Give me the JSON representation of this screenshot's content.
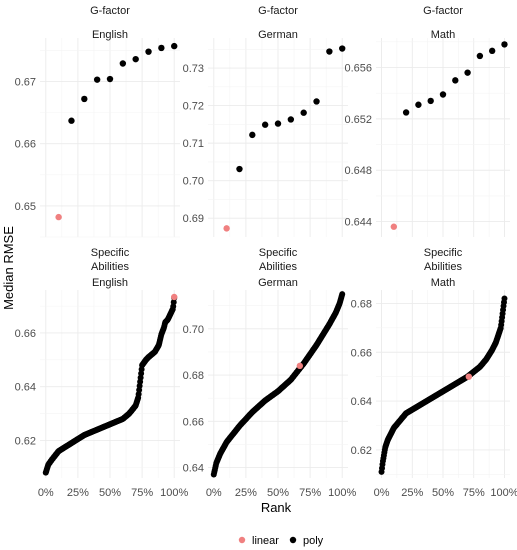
{
  "figure": {
    "y_title": "Median RMSE",
    "x_title": "Rank",
    "legend": [
      {
        "label": "linear",
        "color": "#f08080"
      },
      {
        "label": "poly",
        "color": "#000000"
      }
    ]
  },
  "chart_data": [
    {
      "type": "scatter",
      "row_label": "G-factor",
      "col_label": "English",
      "ylim": [
        0.645,
        0.677
      ],
      "yticks": [
        0.65,
        0.66,
        0.67
      ],
      "ytick_labels": [
        "0.65",
        "0.66",
        "0.67"
      ],
      "xlim": [
        0,
        100
      ],
      "series": [
        {
          "name": "linear",
          "x": [
            10
          ],
          "y": [
            0.6482
          ]
        },
        {
          "name": "poly",
          "x": [
            20,
            30,
            40,
            50,
            60,
            70,
            80,
            90,
            100
          ],
          "y": [
            0.6637,
            0.6672,
            0.6703,
            0.6704,
            0.6729,
            0.6736,
            0.6748,
            0.6754,
            0.6757
          ]
        }
      ]
    },
    {
      "type": "scatter",
      "row_label": "G-factor",
      "col_label": "German",
      "ylim": [
        0.685,
        0.738
      ],
      "yticks": [
        0.69,
        0.7,
        0.71,
        0.72,
        0.73
      ],
      "ytick_labels": [
        "0.69",
        "0.70",
        "0.71",
        "0.72",
        "0.73"
      ],
      "xlim": [
        0,
        100
      ],
      "series": [
        {
          "name": "linear",
          "x": [
            10
          ],
          "y": [
            0.6873
          ]
        },
        {
          "name": "poly",
          "x": [
            20,
            30,
            40,
            50,
            60,
            70,
            80,
            90,
            100
          ],
          "y": [
            0.7031,
            0.7122,
            0.7149,
            0.7152,
            0.7163,
            0.7181,
            0.7211,
            0.7344,
            0.7352
          ]
        }
      ]
    },
    {
      "type": "scatter",
      "row_label": "G-factor",
      "col_label": "Math",
      "ylim": [
        0.6428,
        0.6583
      ],
      "yticks": [
        0.644,
        0.648,
        0.652,
        0.656
      ],
      "ytick_labels": [
        "0.644",
        "0.648",
        "0.652",
        "0.656"
      ],
      "xlim": [
        0,
        100
      ],
      "series": [
        {
          "name": "linear",
          "x": [
            10
          ],
          "y": [
            0.6436
          ]
        },
        {
          "name": "poly",
          "x": [
            20,
            30,
            40,
            50,
            60,
            70,
            80,
            90,
            100
          ],
          "y": [
            0.6525,
            0.6531,
            0.6534,
            0.6539,
            0.655,
            0.6556,
            0.6569,
            0.6573,
            0.6578
          ]
        }
      ]
    },
    {
      "type": "scatter",
      "row_label": "Specific Abilities",
      "col_label": "English",
      "ylim": [
        0.606,
        0.676
      ],
      "yticks": [
        0.62,
        0.64,
        0.66
      ],
      "ytick_labels": [
        "0.62",
        "0.64",
        "0.66"
      ],
      "xlim": [
        0,
        100
      ],
      "xticks": [
        0,
        25,
        50,
        75,
        100
      ],
      "xtick_labels": [
        "0%",
        "25%",
        "50%",
        "75%",
        "100%"
      ],
      "curve": {
        "x": [
          0,
          2,
          5,
          10,
          20,
          30,
          40,
          50,
          60,
          65,
          70,
          72,
          73,
          75,
          78,
          80,
          85,
          88,
          90,
          92,
          93,
          95,
          97,
          99,
          100
        ],
        "y": [
          0.608,
          0.611,
          0.613,
          0.616,
          0.619,
          0.622,
          0.624,
          0.626,
          0.628,
          0.63,
          0.633,
          0.636,
          0.64,
          0.648,
          0.65,
          0.651,
          0.653,
          0.6555,
          0.6595,
          0.662,
          0.664,
          0.665,
          0.667,
          0.669,
          0.673
        ]
      },
      "series": [
        {
          "name": "linear",
          "x": [
            100
          ],
          "y": [
            0.6734
          ]
        }
      ]
    },
    {
      "type": "scatter",
      "row_label": "Specific Abilities",
      "col_label": "German",
      "ylim": [
        0.6355,
        0.7168
      ],
      "yticks": [
        0.64,
        0.66,
        0.68,
        0.7
      ],
      "ytick_labels": [
        "0.64",
        "0.66",
        "0.68",
        "0.70"
      ],
      "xlim": [
        0,
        100
      ],
      "xticks": [
        0,
        25,
        50,
        75,
        100
      ],
      "xtick_labels": [
        "0%",
        "25%",
        "50%",
        "75%",
        "100%"
      ],
      "curve": {
        "x": [
          0,
          2,
          5,
          10,
          20,
          30,
          40,
          50,
          60,
          70,
          80,
          90,
          95,
          98,
          100
        ],
        "y": [
          0.637,
          0.642,
          0.646,
          0.651,
          0.658,
          0.664,
          0.669,
          0.673,
          0.678,
          0.685,
          0.693,
          0.702,
          0.707,
          0.711,
          0.715
        ]
      },
      "series": [
        {
          "name": "linear",
          "x": [
            67
          ],
          "y": [
            0.684
          ]
        }
      ]
    },
    {
      "type": "scatter",
      "row_label": "Specific Abilities",
      "col_label": "Math",
      "ylim": [
        0.6085,
        0.6855
      ],
      "yticks": [
        0.62,
        0.64,
        0.66,
        0.68
      ],
      "ytick_labels": [
        "0.62",
        "0.64",
        "0.66",
        "0.68"
      ],
      "xlim": [
        0,
        100
      ],
      "xticks": [
        0,
        25,
        50,
        75,
        100
      ],
      "xtick_labels": [
        "0%",
        "25%",
        "50%",
        "75%",
        "100%"
      ],
      "curve": {
        "x": [
          0,
          1,
          2,
          3,
          5,
          8,
          10,
          15,
          20,
          30,
          40,
          50,
          60,
          70,
          75,
          80,
          85,
          90,
          93,
          95,
          97,
          98,
          99,
          100
        ],
        "y": [
          0.611,
          0.615,
          0.618,
          0.621,
          0.624,
          0.627,
          0.629,
          0.632,
          0.635,
          0.638,
          0.641,
          0.644,
          0.647,
          0.65,
          0.652,
          0.654,
          0.657,
          0.661,
          0.664,
          0.667,
          0.67,
          0.674,
          0.678,
          0.682
        ]
      },
      "series": [
        {
          "name": "linear",
          "x": [
            71
          ],
          "y": [
            0.65
          ]
        }
      ]
    }
  ]
}
